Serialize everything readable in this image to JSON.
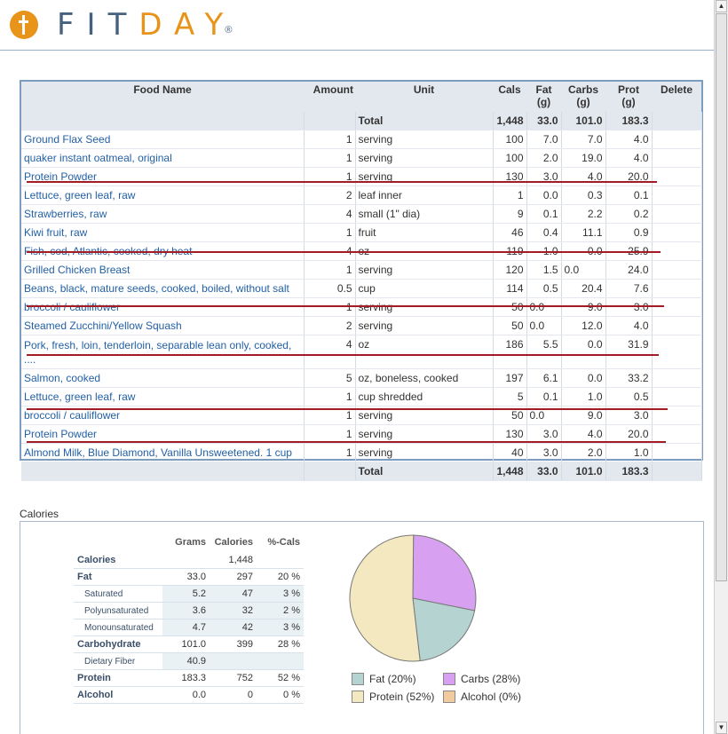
{
  "brand": {
    "fit": "FIT",
    "day": "DAY",
    "reg": "®"
  },
  "foods": {
    "headers": [
      "Food Name",
      "Amount",
      "Unit",
      "Cals",
      "Fat\n(g)",
      "Carbs\n(g)",
      "Prot\n(g)",
      "Delete"
    ],
    "total_label": "Total",
    "totals": {
      "cals": "1,448",
      "fat": "33.0",
      "carbs": "101.0",
      "prot": "183.3"
    },
    "rows": [
      {
        "name": "Ground Flax Seed",
        "amount": "1",
        "unit": "serving",
        "cals": "100",
        "fat": "7.0",
        "carbs": "7.0",
        "prot": "4.0"
      },
      {
        "name": "quaker instant oatmeal, original",
        "amount": "1",
        "unit": "serving",
        "cals": "100",
        "fat": "2.0",
        "carbs": "19.0",
        "prot": "4.0"
      },
      {
        "name": "Protein Powder",
        "amount": "1",
        "unit": "serving",
        "cals": "130",
        "fat": "3.0",
        "carbs": "4.0",
        "prot": "20.0"
      },
      {
        "name": "Lettuce, green leaf, raw",
        "amount": "2",
        "unit": "leaf inner",
        "cals": "1",
        "fat": "0.0",
        "carbs": "0.3",
        "prot": "0.1"
      },
      {
        "name": "Strawberries, raw",
        "amount": "4",
        "unit": "small (1\" dia)",
        "cals": "9",
        "fat": "0.1",
        "carbs": "2.2",
        "prot": "0.2"
      },
      {
        "name": "Kiwi fruit, raw",
        "amount": "1",
        "unit": "fruit",
        "cals": "46",
        "fat": "0.4",
        "carbs": "11.1",
        "prot": "0.9"
      },
      {
        "name": "Fish, cod, Atlantic, cooked, dry heat",
        "amount": "4",
        "unit": "oz",
        "cals": "119",
        "fat": "1.0",
        "carbs": "0.0",
        "prot": "25.9"
      },
      {
        "name": "Grilled Chicken Breast",
        "amount": "1",
        "unit": "serving",
        "cals": "120",
        "fat": "1.5",
        "carbs": "0.0",
        "prot": "24.0"
      },
      {
        "name": "Beans, black, mature seeds, cooked, boiled, without salt",
        "amount": "0.5",
        "unit": "cup",
        "cals": "114",
        "fat": "0.5",
        "carbs": "20.4",
        "prot": "7.6"
      },
      {
        "name": "broccoli / cauliflower",
        "amount": "1",
        "unit": "serving",
        "cals": "50",
        "fat": "0.0",
        "carbs": "9.0",
        "prot": "3.0"
      },
      {
        "name": "Steamed Zucchini/Yellow Squash",
        "amount": "2",
        "unit": "serving",
        "cals": "50",
        "fat": "0.0",
        "carbs": "12.0",
        "prot": "4.0"
      },
      {
        "name": "Pork, fresh, loin, tenderloin, separable lean only, cooked, ....",
        "amount": "4",
        "unit": "oz",
        "cals": "186",
        "fat": "5.5",
        "carbs": "0.0",
        "prot": "31.9"
      },
      {
        "name": "Salmon, cooked",
        "amount": "5",
        "unit": "oz, boneless, cooked",
        "cals": "197",
        "fat": "6.1",
        "carbs": "0.0",
        "prot": "33.2"
      },
      {
        "name": "Lettuce, green leaf, raw",
        "amount": "1",
        "unit": "cup shredded",
        "cals": "5",
        "fat": "0.1",
        "carbs": "1.0",
        "prot": "0.5"
      },
      {
        "name": "broccoli / cauliflower",
        "amount": "1",
        "unit": "serving",
        "cals": "50",
        "fat": "0.0",
        "carbs": "9.0",
        "prot": "3.0"
      },
      {
        "name": "Protein Powder",
        "amount": "1",
        "unit": "serving",
        "cals": "130",
        "fat": "3.0",
        "carbs": "4.0",
        "prot": "20.0"
      },
      {
        "name": "Almond Milk, Blue Diamond, Vanilla Unsweetened. 1 cup",
        "amount": "1",
        "unit": "serving",
        "cals": "40",
        "fat": "3.0",
        "carbs": "2.0",
        "prot": "1.0"
      }
    ]
  },
  "calories": {
    "title": "Calories",
    "headers": [
      "Grams",
      "Calories",
      "%-Cals"
    ],
    "rows": [
      {
        "label": "Calories",
        "kind": "lbl",
        "grams": "",
        "cals": "1,448",
        "pct": ""
      },
      {
        "label": "Fat",
        "kind": "lbl",
        "grams": "33.0",
        "cals": "297",
        "pct": "20 %"
      },
      {
        "label": "Saturated",
        "kind": "sub",
        "grams": "5.2",
        "cals": "47",
        "pct": "3 %"
      },
      {
        "label": "Polyunsaturated",
        "kind": "sub",
        "grams": "3.6",
        "cals": "32",
        "pct": "2 %"
      },
      {
        "label": "Monounsaturated",
        "kind": "sub",
        "grams": "4.7",
        "cals": "42",
        "pct": "3 %"
      },
      {
        "label": "Carbohydrate",
        "kind": "lbl",
        "grams": "101.0",
        "cals": "399",
        "pct": "28 %"
      },
      {
        "label": "Dietary Fiber",
        "kind": "sub",
        "grams": "40.9",
        "cals": "",
        "pct": ""
      },
      {
        "label": "Protein",
        "kind": "lbl",
        "grams": "183.3",
        "cals": "752",
        "pct": "52 %"
      },
      {
        "label": "Alcohol",
        "kind": "lbl",
        "grams": "0.0",
        "cals": "0",
        "pct": "0 %"
      }
    ]
  },
  "chart_data": {
    "type": "pie",
    "categories": [
      "Fat",
      "Carbs",
      "Protein",
      "Alcohol"
    ],
    "values": [
      20,
      28,
      52,
      0
    ],
    "legend_labels": [
      "Fat  (20%)",
      "Carbs  (28%)",
      "Protein  (52%)",
      "Alcohol  (0%)"
    ],
    "colors": [
      "#b5d3d0",
      "#d8a0f0",
      "#f4e8c1",
      "#f2caa0"
    ],
    "legend": "bottom"
  },
  "scrollbar": {
    "up": "▲",
    "down": "▼"
  }
}
